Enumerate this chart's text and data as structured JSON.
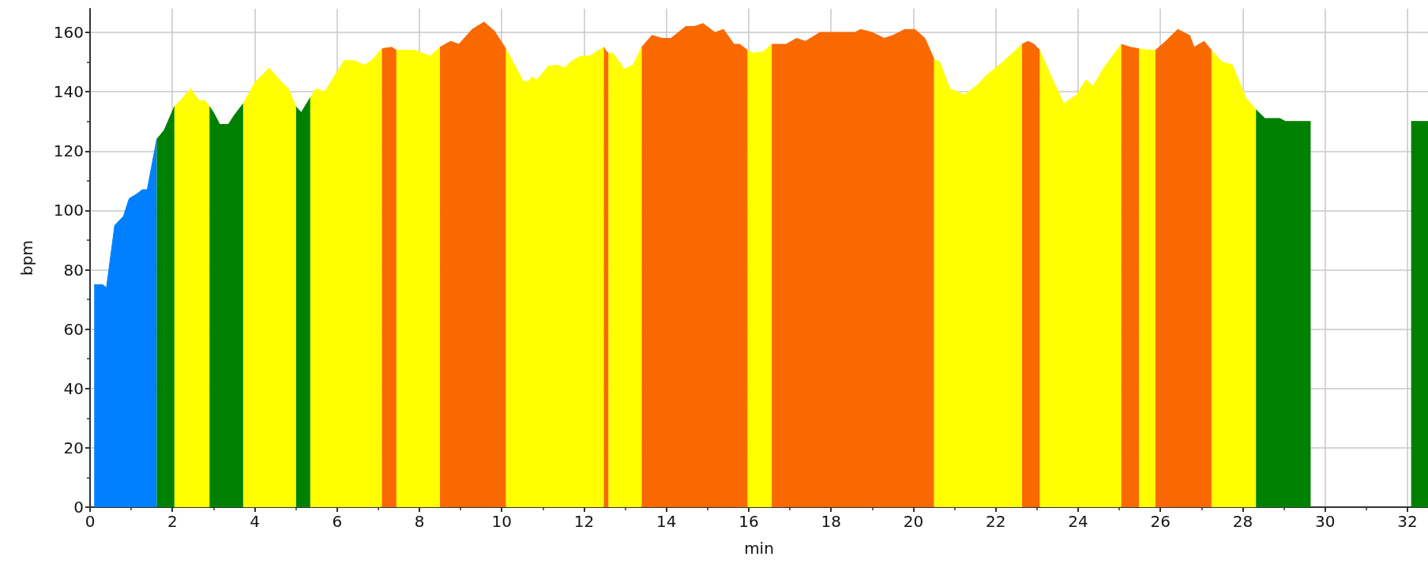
{
  "chart_data": {
    "type": "area",
    "xlabel": "min",
    "ylabel": "bpm",
    "xlim": [
      0,
      32.5
    ],
    "xticks": [
      0,
      2,
      4,
      6,
      8,
      10,
      12,
      14,
      16,
      18,
      20,
      22,
      24,
      26,
      28,
      30,
      32
    ],
    "ylim": [
      0,
      168
    ],
    "yticks": [
      0,
      20,
      40,
      60,
      80,
      100,
      120,
      140,
      160
    ],
    "grid": true,
    "series": [
      {
        "color": "#0080ff",
        "x": [
          0.1,
          0.3,
          0.4,
          0.6,
          0.81,
          0.95,
          1.13,
          1.27,
          1.39,
          1.62
        ],
        "values": [
          75,
          75,
          74,
          95,
          98,
          104,
          105.5,
          107,
          107,
          124
        ]
      },
      {
        "color": "#008000",
        "x": [
          1.62,
          1.8,
          2.05,
          2.5,
          2.9,
          3.0,
          3.15,
          3.36,
          3.5,
          3.72,
          4.4,
          5.0,
          5.13,
          5.35,
          17,
          28.32,
          28.54,
          28.9,
          29.04,
          29.65,
          31,
          32.09,
          32.5
        ],
        "values": [
          124,
          127,
          135,
          null,
          135,
          133,
          129,
          129,
          132,
          136,
          null,
          135,
          133,
          138,
          null,
          134,
          131,
          131,
          130,
          130,
          null,
          130,
          130
        ]
      },
      {
        "color": "#ffff00",
        "x": [
          2.05,
          2.19,
          2.44,
          2.65,
          2.79,
          2.9,
          3.3,
          3.72,
          4.0,
          4.35,
          4.67,
          4.82,
          5.0,
          5.2,
          5.35,
          5.49,
          5.7,
          6.17,
          6.41,
          6.66,
          6.84,
          7.09,
          7.27,
          7.44,
          7.9,
          8.26,
          8.5,
          9.3,
          10.1,
          10.52,
          10.64,
          10.74,
          10.85,
          11.13,
          11.35,
          11.52,
          11.67,
          11.91,
          12.13,
          12.48,
          12.54,
          12.59,
          12.7,
          12.98,
          13.19,
          13.4,
          14.7,
          15.97,
          16.1,
          16.35,
          16.56,
          18.5,
          20.5,
          20.64,
          20.89,
          21.24,
          21.53,
          21.81,
          22.17,
          22.64,
          22.85,
          23.07,
          23.32,
          23.65,
          23.97,
          24.19,
          24.37,
          24.62,
          25.05,
          25.27,
          25.48,
          25.7,
          25.88,
          26.5,
          27.24,
          27.5,
          27.75,
          28.07,
          28.32
        ],
        "values": [
          135,
          137,
          141,
          137,
          137,
          135,
          null,
          136,
          143,
          148,
          143,
          141,
          135,
          null,
          138,
          141,
          140,
          150.5,
          150.5,
          149,
          150.5,
          154.5,
          null,
          154,
          154,
          152,
          155,
          null,
          154.5,
          143.6,
          143.4,
          145,
          144,
          148.6,
          149,
          148,
          150,
          152,
          152,
          155,
          null,
          153,
          153,
          147.6,
          149,
          155,
          null,
          154,
          153,
          153.5,
          156,
          null,
          151,
          150,
          141,
          139,
          142,
          146,
          150,
          156,
          null,
          154,
          146,
          136,
          139,
          144,
          142,
          148,
          156,
          null,
          154.5,
          154,
          154,
          null,
          154,
          150,
          149,
          138,
          134
        ]
      },
      {
        "color": "#f96900",
        "x": [
          7.09,
          7.33,
          7.44,
          8,
          8.5,
          8.76,
          8.96,
          9.28,
          9.57,
          9.82,
          10.1,
          11.3,
          12.48,
          12.52,
          12.59,
          13,
          13.4,
          13.65,
          13.9,
          14.11,
          14.47,
          14.68,
          14.89,
          15.18,
          15.39,
          15.64,
          15.78,
          15.97,
          16.3,
          16.56,
          16.91,
          17.16,
          17.38,
          17.73,
          18.58,
          18.72,
          19.0,
          19.29,
          19.5,
          19.79,
          20.04,
          20.28,
          20.5,
          21.5,
          22.64,
          22.78,
          22.93,
          23.07,
          24,
          25.05,
          25.27,
          25.48,
          25.7,
          25.88,
          26.13,
          26.42,
          26.71,
          26.82,
          27.06,
          27.24
        ],
        "values": [
          154.5,
          155,
          154,
          null,
          155,
          157,
          156,
          161,
          163.5,
          160.5,
          154.5,
          null,
          155,
          154,
          153,
          null,
          155,
          159,
          158,
          158,
          162,
          162,
          163,
          160,
          161,
          156,
          156,
          154,
          null,
          156,
          156,
          158,
          157,
          160,
          160,
          161,
          160,
          158,
          159,
          161,
          161,
          158,
          151,
          null,
          156,
          157,
          156,
          154,
          null,
          156,
          155,
          154.5,
          null,
          154,
          157,
          161,
          159,
          155,
          157,
          154
        ]
      }
    ]
  }
}
